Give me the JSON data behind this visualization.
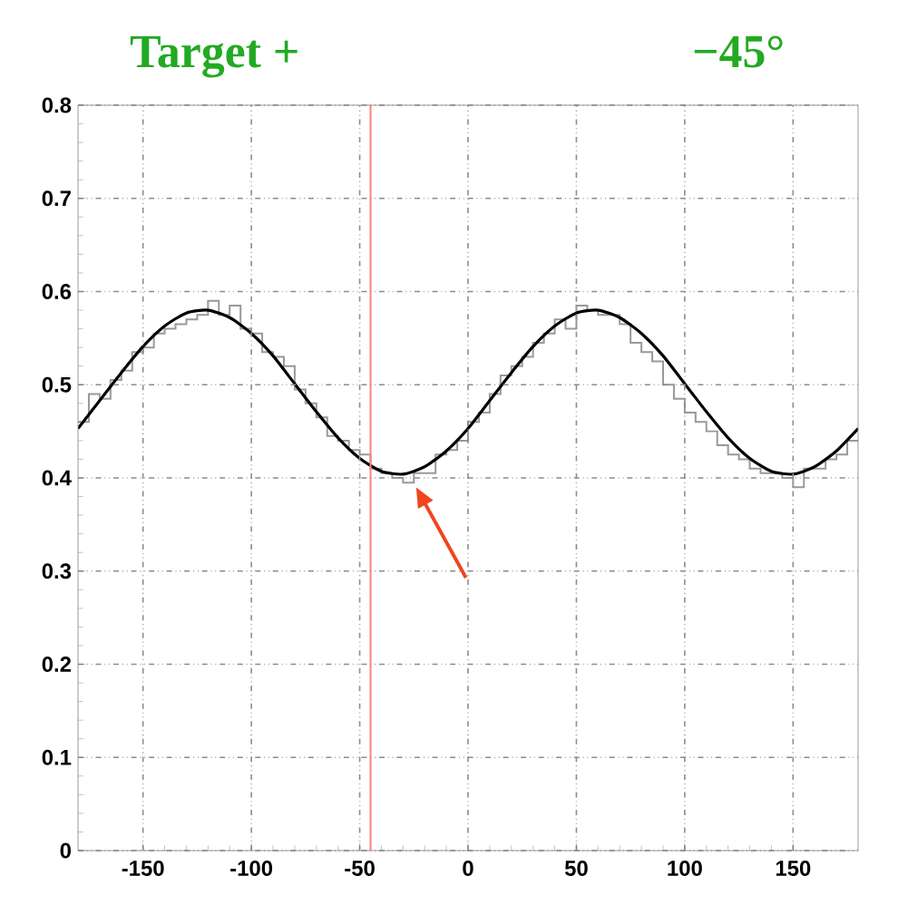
{
  "chart_data": {
    "type": "histogram",
    "title": "Target +",
    "subtitle": "−45°",
    "xlim": [
      -180,
      180
    ],
    "ylim": [
      0,
      0.8
    ],
    "xticks": [
      -150,
      -100,
      -50,
      0,
      50,
      100,
      150
    ],
    "yticks": [
      0,
      0.1,
      0.2,
      0.3,
      0.4,
      0.5,
      0.6,
      0.7,
      0.8
    ],
    "grid": true,
    "ref_lines": [
      {
        "axis": "x",
        "value": -45,
        "color": "#ff8080"
      }
    ],
    "series": [
      {
        "color": "#999999",
        "bins": [
          -180,
          -175,
          -170,
          -165,
          -160,
          -155,
          -150,
          -145,
          -140,
          -135,
          -130,
          -125,
          -120,
          -115,
          -110,
          -105,
          -100,
          -95,
          -90,
          -85,
          -80,
          -75,
          -70,
          -65,
          -60,
          -55,
          -50,
          -45,
          -40,
          -35,
          -30,
          -25,
          -20,
          -15,
          -10,
          -5,
          0,
          5,
          10,
          15,
          20,
          25,
          30,
          35,
          40,
          45,
          50,
          55,
          60,
          65,
          70,
          75,
          80,
          85,
          90,
          95,
          100,
          105,
          110,
          115,
          120,
          125,
          130,
          135,
          140,
          145,
          150,
          155,
          160,
          165,
          170,
          175,
          180
        ],
        "values": [
          0.46,
          0.49,
          0.485,
          0.505,
          0.515,
          0.535,
          0.54,
          0.555,
          0.56,
          0.565,
          0.57,
          0.575,
          0.59,
          0.575,
          0.585,
          0.56,
          0.555,
          0.535,
          0.53,
          0.52,
          0.495,
          0.48,
          0.465,
          0.445,
          0.44,
          0.43,
          0.425,
          0.41,
          0.405,
          0.4,
          0.395,
          0.405,
          0.405,
          0.425,
          0.43,
          0.44,
          0.46,
          0.47,
          0.49,
          0.51,
          0.52,
          0.53,
          0.545,
          0.555,
          0.57,
          0.56,
          0.585,
          0.58,
          0.575,
          0.575,
          0.565,
          0.545,
          0.535,
          0.525,
          0.5,
          0.485,
          0.47,
          0.46,
          0.45,
          0.435,
          0.425,
          0.42,
          0.41,
          0.405,
          0.405,
          0.4,
          0.39,
          0.41,
          0.41,
          0.42,
          0.425,
          0.44
        ]
      },
      {
        "type": "line",
        "color": "#000000",
        "x": [
          -180,
          -170,
          -160,
          -150,
          -140,
          -130,
          -120,
          -110,
          -100,
          -90,
          -80,
          -70,
          -60,
          -50,
          -40,
          -30,
          -20,
          -10,
          0,
          10,
          20,
          30,
          40,
          50,
          60,
          70,
          80,
          90,
          100,
          110,
          120,
          130,
          140,
          150,
          160,
          170,
          180
        ],
        "values": [
          0.453,
          0.483,
          0.513,
          0.541,
          0.563,
          0.577,
          0.58,
          0.572,
          0.555,
          0.531,
          0.501,
          0.471,
          0.443,
          0.421,
          0.407,
          0.404,
          0.412,
          0.429,
          0.453,
          0.483,
          0.513,
          0.541,
          0.563,
          0.577,
          0.58,
          0.572,
          0.555,
          0.531,
          0.501,
          0.471,
          0.443,
          0.421,
          0.407,
          0.404,
          0.412,
          0.429,
          0.453
        ]
      }
    ]
  }
}
